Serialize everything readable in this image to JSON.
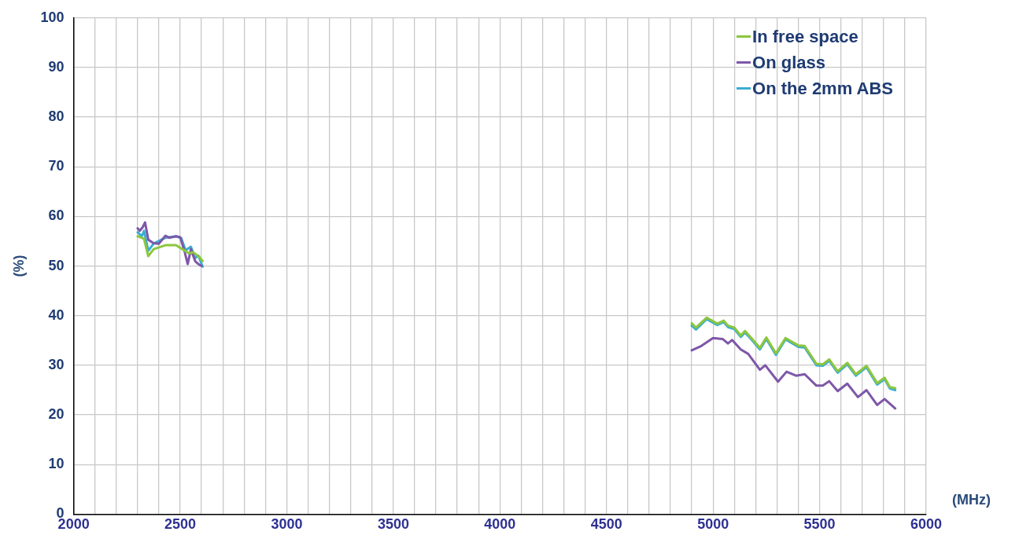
{
  "chart_data": {
    "type": "line",
    "xlabel": "(MHz)",
    "ylabel": "(%)",
    "xlim": [
      2000,
      6000
    ],
    "ylim": [
      0,
      100
    ],
    "xticks": [
      2000,
      {
        "value": 2100,
        "label": null
      },
      {
        "value": 2200,
        "label": null
      },
      {
        "value": 2300,
        "label": null
      },
      {
        "value": 2400,
        "label": null
      },
      2500,
      {
        "value": 2600,
        "label": null
      },
      {
        "value": 2700,
        "label": null
      },
      {
        "value": 2800,
        "label": null
      },
      {
        "value": 2900,
        "label": null
      },
      3000,
      {
        "value": 3100,
        "label": null
      },
      {
        "value": 3200,
        "label": null
      },
      {
        "value": 3300,
        "label": null
      },
      {
        "value": 3400,
        "label": null
      },
      3500,
      {
        "value": 3600,
        "label": null
      },
      {
        "value": 3700,
        "label": null
      },
      {
        "value": 3800,
        "label": null
      },
      {
        "value": 3900,
        "label": null
      },
      4000,
      {
        "value": 4100,
        "label": null
      },
      {
        "value": 4200,
        "label": null
      },
      {
        "value": 4300,
        "label": null
      },
      {
        "value": 4400,
        "label": null
      },
      4500,
      {
        "value": 4600,
        "label": null
      },
      {
        "value": 4700,
        "label": null
      },
      {
        "value": 4800,
        "label": null
      },
      {
        "value": 4900,
        "label": null
      },
      5000,
      {
        "value": 5100,
        "label": null
      },
      {
        "value": 5200,
        "label": null
      },
      {
        "value": 5300,
        "label": null
      },
      {
        "value": 5400,
        "label": null
      },
      5500,
      {
        "value": 5600,
        "label": null
      },
      {
        "value": 5700,
        "label": null
      },
      {
        "value": 5800,
        "label": null
      },
      {
        "value": 5900,
        "label": null
      },
      6000
    ],
    "yticks": [
      0,
      10,
      20,
      30,
      40,
      50,
      60,
      70,
      80,
      90,
      100
    ],
    "grid": true,
    "legend": "top right",
    "marker": "none",
    "line_style": "solid",
    "series": [
      {
        "name": "In free space",
        "color": "#8cc63e",
        "x": [
          2300,
          2330,
          2350,
          2375,
          2430,
          2480,
          2510,
          2540,
          2560,
          2590,
          2605,
          4000,
          4900,
          4920,
          4970,
          5020,
          5050,
          5070,
          5100,
          5130,
          5150,
          5180,
          5220,
          5250,
          5295,
          5340,
          5400,
          5430,
          5485,
          5515,
          5545,
          5585,
          5630,
          5670,
          5720,
          5770,
          5805,
          5830,
          5855
        ],
        "values": [
          56.0,
          55.5,
          52.0,
          53.4,
          54.2,
          54.2,
          53.4,
          52.6,
          52.8,
          51.8,
          51.0,
          null,
          38.5,
          37.6,
          39.6,
          38.4,
          39.0,
          38.0,
          37.6,
          36.0,
          36.9,
          35.5,
          33.5,
          35.6,
          32.4,
          35.5,
          34.0,
          33.9,
          30.3,
          30.2,
          31.2,
          28.8,
          30.5,
          28.2,
          29.9,
          26.4,
          27.5,
          25.6,
          25.4
        ]
      },
      {
        "name": "On glass",
        "color": "#7e57a8",
        "x": [
          2300,
          2310,
          2325,
          2335,
          2350,
          2375,
          2400,
          2430,
          2450,
          2480,
          2500,
          2520,
          2535,
          2550,
          2570,
          2585,
          2600,
          4000,
          4900,
          4945,
          5000,
          5045,
          5070,
          5090,
          5130,
          5165,
          5220,
          5245,
          5305,
          5345,
          5390,
          5430,
          5485,
          5515,
          5545,
          5585,
          5630,
          5680,
          5720,
          5770,
          5805,
          5855
        ],
        "values": [
          57.6,
          57.1,
          57.9,
          58.8,
          55.3,
          54.6,
          54.5,
          56.1,
          55.7,
          56.0,
          55.8,
          53.0,
          50.4,
          53.4,
          51.0,
          50.4,
          50.0,
          null,
          33.0,
          33.9,
          35.5,
          35.3,
          34.4,
          35.1,
          33.2,
          32.3,
          29.1,
          30.0,
          26.7,
          28.7,
          27.9,
          28.2,
          25.9,
          25.9,
          26.8,
          24.8,
          26.3,
          23.6,
          25.0,
          22.0,
          23.2,
          21.3
        ]
      },
      {
        "name": "On the 2mm ABS",
        "color": "#3badd3",
        "x": [
          2300,
          2320,
          2330,
          2350,
          2375,
          2430,
          2480,
          2505,
          2525,
          2550,
          2570,
          2585,
          2605,
          4000,
          4900,
          4920,
          4970,
          5020,
          5050,
          5070,
          5100,
          5130,
          5150,
          5180,
          5220,
          5250,
          5295,
          5340,
          5400,
          5430,
          5485,
          5515,
          5545,
          5585,
          5630,
          5670,
          5720,
          5770,
          5805,
          5830,
          5855
        ],
        "values": [
          56.8,
          56.0,
          57.1,
          53.1,
          54.5,
          55.7,
          56.0,
          55.6,
          53.2,
          53.9,
          51.6,
          52.1,
          49.9,
          null,
          38.0,
          37.2,
          39.3,
          38.1,
          38.7,
          37.7,
          37.3,
          35.7,
          36.6,
          35.2,
          33.2,
          35.3,
          32.1,
          35.2,
          33.7,
          33.6,
          30.0,
          29.9,
          30.9,
          28.5,
          30.2,
          27.9,
          29.6,
          26.1,
          27.2,
          25.3,
          25.0
        ]
      }
    ]
  }
}
